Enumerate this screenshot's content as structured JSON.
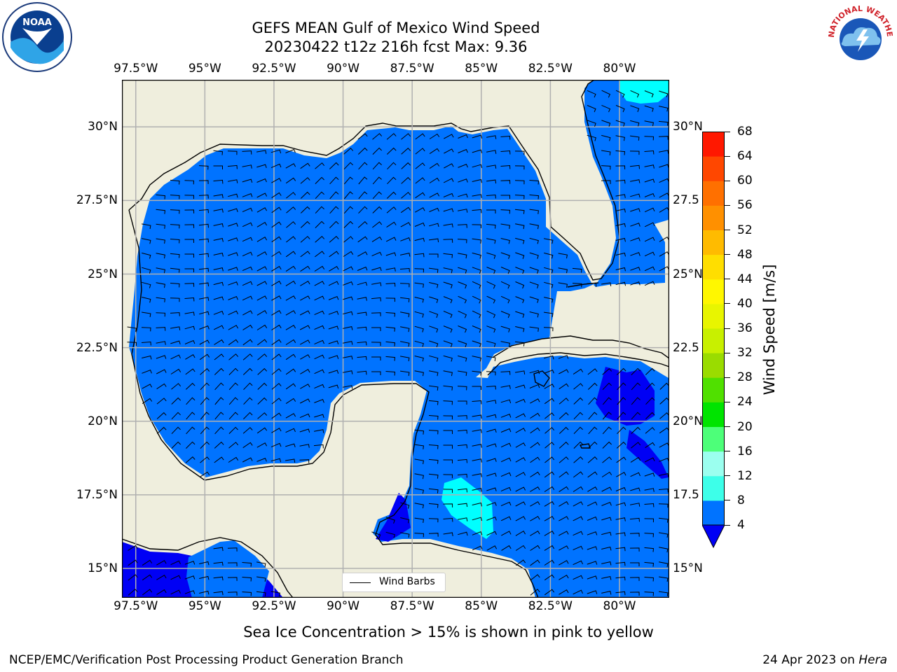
{
  "header": {
    "title_line1": "GEFS MEAN Gulf of Mexico Wind Speed",
    "title_line2": "20230422 t12z 216h fcst   Max: 9.36"
  },
  "logos": {
    "left": {
      "icon": "noaa-emblem-icon",
      "text": "NOAA"
    },
    "right": {
      "icon": "national-weather-service-emblem-icon",
      "text": "NATIONAL WEATHER SERVICE"
    }
  },
  "map": {
    "lon_ticks": [
      "97.5°W",
      "95°W",
      "92.5°W",
      "90°W",
      "87.5°W",
      "85°W",
      "82.5°W",
      "80°W"
    ],
    "lat_ticks_left": [
      "30°N",
      "27.5°N",
      "25°N",
      "22.5°N",
      "20°N",
      "17.5°N",
      "15°N"
    ],
    "lat_ticks_right": [
      "30°N",
      "27.5",
      "25°N",
      "22.5",
      "20°N",
      "17.5",
      "15°N"
    ],
    "lon_range": [
      -98,
      -78.2
    ],
    "lat_range": [
      14,
      31.6
    ],
    "land_color": "#efeedd",
    "grid": true,
    "legend_label": "Wind Barbs"
  },
  "chart_data": {
    "type": "filled-contour",
    "title": "GEFS MEAN Gulf of Mexico Wind Speed",
    "subtitle": "20230422 t12z 216h fcst   Max: 9.36",
    "max_value": 9.36,
    "variable_label": "Wind Speed [m/s]",
    "levels": [
      4,
      8,
      12,
      16,
      20,
      24,
      28,
      32,
      36,
      40,
      44,
      48,
      52,
      56,
      60,
      64,
      68
    ],
    "colors": [
      "#0073ff",
      "#00ffff",
      "#3dffe9",
      "#9bffef",
      "#4dff79",
      "#00e400",
      "#50e000",
      "#9adc00",
      "#c8f000",
      "#e8f500",
      "#fff700",
      "#ffde00",
      "#ffbb00",
      "#ff9000",
      "#ff7000",
      "#ff4700",
      "#ff1800"
    ],
    "under_color": "#0000f5",
    "overlay": "Wind Barbs"
  },
  "colorbar": {
    "tick_labels": [
      "68",
      "64",
      "60",
      "56",
      "52",
      "48",
      "44",
      "40",
      "36",
      "32",
      "28",
      "24",
      "20",
      "16",
      "12",
      "8",
      "4"
    ]
  },
  "footer": {
    "caption": "Sea Ice Concentration > 15% is shown in pink to yellow",
    "credit": "NCEP/EMC/Verification Post Processing Product Generation Branch",
    "date": "24 Apr 2023 on",
    "machine": "Hera"
  }
}
